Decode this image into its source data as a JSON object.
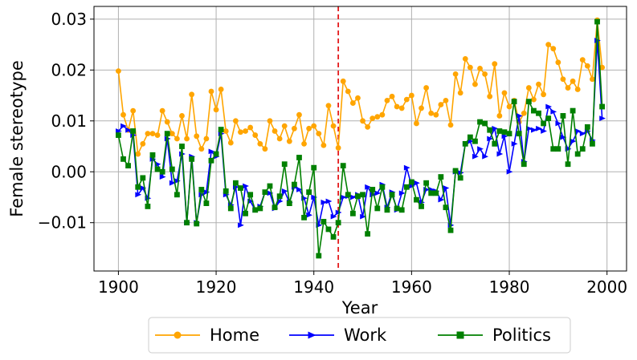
{
  "chart_data": {
    "type": "line",
    "xlabel": "Year",
    "ylabel": "Female stereotype",
    "xlim": [
      1895,
      2004
    ],
    "ylim": [
      -0.0195,
      0.0325
    ],
    "x_ticks": [
      1900,
      1920,
      1940,
      1960,
      1980,
      2000
    ],
    "x_tick_labels": [
      "1900",
      "1920",
      "1940",
      "1960",
      "1980",
      "2000"
    ],
    "y_ticks": [
      -0.01,
      0.0,
      0.01,
      0.02,
      0.03
    ],
    "y_tick_labels": [
      "−0.01",
      "0.00",
      "0.01",
      "0.02",
      "0.03"
    ],
    "grid": true,
    "legend_position": "bottom-outside",
    "vertical_line": {
      "x": 1945,
      "color": "#e41a1c",
      "style": "dashed"
    },
    "series": [
      {
        "name": "Home",
        "color": "#ffa500",
        "marker": "circle",
        "x_start": 1900,
        "values": [
          0.0198,
          0.0112,
          0.0082,
          0.012,
          0.0035,
          0.0055,
          0.0075,
          0.0075,
          0.0072,
          0.012,
          0.0098,
          0.0075,
          0.0065,
          0.011,
          0.0065,
          0.0152,
          0.007,
          0.0045,
          0.0065,
          0.0158,
          0.0122,
          0.0162,
          0.008,
          0.0057,
          0.01,
          0.0078,
          0.008,
          0.0087,
          0.0072,
          0.0055,
          0.0045,
          0.01,
          0.008,
          0.0065,
          0.009,
          0.006,
          0.0085,
          0.0112,
          0.0055,
          0.0085,
          0.009,
          0.0075,
          0.0052,
          0.013,
          0.009,
          0.0047,
          0.0178,
          0.0158,
          0.0135,
          0.0145,
          0.01,
          0.0088,
          0.0105,
          0.0108,
          0.0112,
          0.014,
          0.0148,
          0.0128,
          0.0125,
          0.0142,
          0.015,
          0.0095,
          0.0125,
          0.0165,
          0.0115,
          0.0112,
          0.0132,
          0.014,
          0.0092,
          0.0192,
          0.0155,
          0.0222,
          0.0205,
          0.0172,
          0.0203,
          0.0192,
          0.0148,
          0.0212,
          0.011,
          0.0155,
          0.0128,
          0.014,
          0.0098,
          0.0115,
          0.0165,
          0.0142,
          0.0172,
          0.0152,
          0.025,
          0.0242,
          0.0215,
          0.0182,
          0.0165,
          0.0178,
          0.0162,
          0.022,
          0.0208,
          0.0182,
          0.0298,
          0.0205
        ]
      },
      {
        "name": "Work",
        "color": "#0000ff",
        "marker": "triangle-right",
        "x_start": 1900,
        "values": [
          0.008,
          0.009,
          0.0082,
          0.0072,
          -0.0045,
          -0.0032,
          -0.0052,
          0.0025,
          0.0015,
          -0.001,
          0.0065,
          -0.0022,
          -0.0018,
          0.0035,
          -0.01,
          0.003,
          -0.01,
          -0.0045,
          -0.004,
          0.004,
          0.003,
          0.0075,
          -0.0045,
          -0.0065,
          -0.003,
          -0.0105,
          -0.0028,
          -0.0058,
          -0.0075,
          -0.0068,
          -0.004,
          -0.0042,
          -0.0072,
          -0.0058,
          -0.0038,
          -0.006,
          -0.003,
          -0.0035,
          -0.0052,
          -0.0085,
          -0.005,
          -0.0105,
          -0.006,
          -0.0058,
          -0.0088,
          -0.008,
          -0.005,
          -0.0048,
          -0.005,
          -0.0045,
          -0.0088,
          -0.003,
          -0.0045,
          -0.0042,
          -0.0025,
          -0.007,
          -0.004,
          -0.0075,
          -0.0042,
          0.0008,
          -0.0028,
          -0.0022,
          -0.006,
          -0.0035,
          -0.0035,
          -0.0038,
          -0.0055,
          -0.0032,
          -0.0105,
          0.0,
          -0.0002,
          0.0055,
          0.006,
          0.003,
          0.0045,
          0.003,
          0.0065,
          0.0085,
          0.0035,
          0.007,
          0.0,
          0.0055,
          0.011,
          0.002,
          0.0085,
          0.0082,
          0.0085,
          0.008,
          0.0128,
          0.0118,
          0.0095,
          0.0068,
          0.0045,
          0.006,
          0.008,
          0.0075,
          0.008,
          0.0062,
          0.0258,
          0.0105
        ]
      },
      {
        "name": "Politics",
        "color": "#008000",
        "marker": "square",
        "x_start": 1900,
        "values": [
          0.0072,
          0.0025,
          0.0012,
          0.008,
          -0.003,
          -0.0012,
          -0.0068,
          0.0033,
          0.0005,
          0.0,
          0.0075,
          0.0005,
          -0.0045,
          0.005,
          -0.01,
          0.0025,
          -0.0102,
          -0.0035,
          -0.0062,
          0.0022,
          0.0035,
          0.0083,
          -0.0038,
          -0.0072,
          -0.0022,
          -0.0032,
          -0.0082,
          -0.0045,
          -0.0075,
          -0.0072,
          -0.004,
          -0.0028,
          -0.007,
          -0.0048,
          0.0015,
          -0.0062,
          -0.0025,
          0.0028,
          -0.009,
          -0.004,
          0.0008,
          -0.0165,
          -0.0098,
          -0.0113,
          -0.0128,
          -0.01,
          0.0012,
          -0.0045,
          -0.0082,
          -0.0048,
          -0.0045,
          -0.0122,
          -0.0035,
          -0.0072,
          -0.003,
          -0.0075,
          -0.0045,
          -0.0072,
          -0.0075,
          -0.003,
          -0.002,
          -0.0055,
          -0.0068,
          -0.0022,
          -0.0042,
          -0.0042,
          -0.001,
          -0.007,
          -0.0115,
          0.0002,
          -0.0012,
          0.0055,
          0.0068,
          0.006,
          0.0098,
          0.0095,
          0.0082,
          0.0055,
          0.008,
          0.0078,
          0.0075,
          0.0138,
          0.0075,
          0.0015,
          0.0138,
          0.012,
          0.0115,
          0.0095,
          0.0105,
          0.0045,
          0.0045,
          0.011,
          0.0015,
          0.012,
          0.0035,
          0.0045,
          0.0088,
          0.0055,
          0.0295,
          0.0128
        ]
      }
    ]
  }
}
